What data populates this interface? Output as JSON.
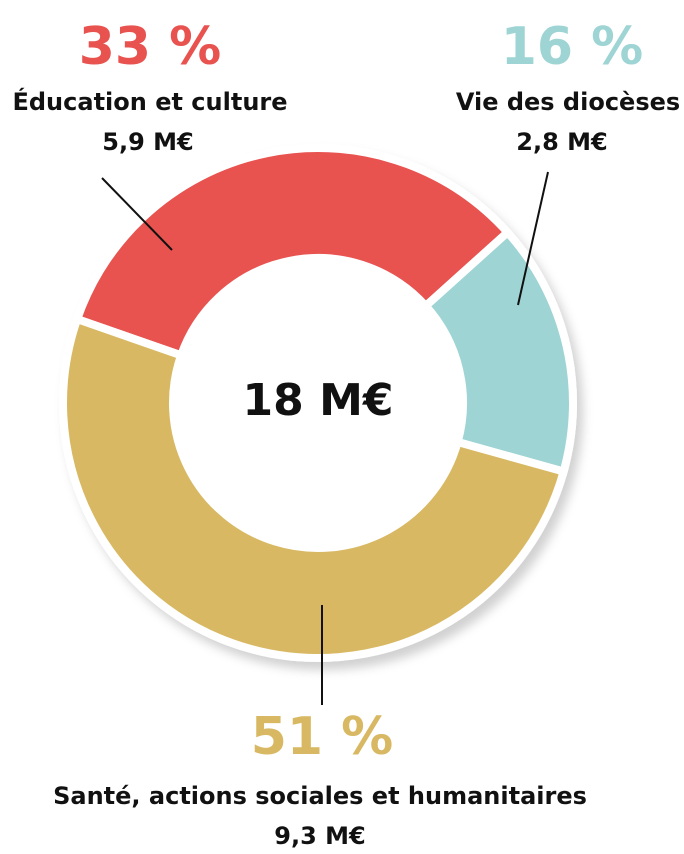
{
  "chart_data": {
    "type": "pie",
    "categories": [
      "Éducation et culture",
      "Vie des diocèses",
      "Santé, actions sociales et humanitaires"
    ],
    "values": [
      33,
      16,
      51
    ],
    "value_labels": [
      "33 %",
      "16 %",
      "51 %"
    ],
    "amount_labels": [
      "5,9 M€",
      "2,8 M€",
      "9,3 M€"
    ],
    "colors": [
      "#e8524f",
      "#9fd4d4",
      "#d8b862"
    ],
    "center_label": "18 M€"
  }
}
